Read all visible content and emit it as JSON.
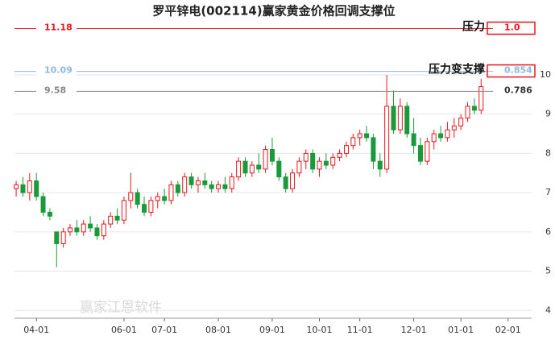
{
  "chart_data": {
    "type": "candlestick",
    "title": "罗平锌电(002114)赢家黄金价格回调支撑位",
    "watermark": "赢家江恩软件",
    "up_color": "#e8161c",
    "down_color": "#1a9a3a",
    "xlim": [
      -0.25,
      76.5
    ],
    "ylim": [
      3.8,
      11.6
    ],
    "yticks": [
      4,
      5,
      6,
      7,
      8,
      9,
      10
    ],
    "xticks": [
      {
        "value": 3,
        "label": "04-01"
      },
      {
        "value": 16,
        "label": "06-01"
      },
      {
        "value": 22,
        "label": "07-01"
      },
      {
        "value": 30,
        "label": "08-01"
      },
      {
        "value": 38,
        "label": "09-01"
      },
      {
        "value": 45,
        "label": "10-01"
      },
      {
        "value": 51,
        "label": "11-01"
      },
      {
        "value": 59,
        "label": "12-01"
      },
      {
        "value": 66,
        "label": "01-01"
      },
      {
        "value": 73,
        "label": "02-01"
      }
    ],
    "grid": true,
    "x": [
      0,
      1,
      2,
      3,
      4,
      5,
      6,
      7,
      8,
      9,
      10,
      11,
      12,
      13,
      14,
      15,
      16,
      17,
      18,
      19,
      20,
      21,
      22,
      23,
      24,
      25,
      26,
      27,
      28,
      29,
      30,
      31,
      32,
      33,
      34,
      35,
      36,
      37,
      38,
      39,
      40,
      41,
      42,
      43,
      44,
      45,
      46,
      47,
      48,
      49,
      50,
      51,
      52,
      53,
      54,
      55,
      56,
      57,
      58,
      59,
      60,
      61,
      62,
      63,
      64,
      65,
      66,
      67,
      68,
      69
    ],
    "open": [
      7.1,
      7.2,
      7.0,
      7.3,
      6.9,
      6.5,
      6.0,
      5.7,
      6.0,
      6.1,
      6.0,
      6.2,
      6.1,
      5.9,
      6.2,
      6.4,
      6.3,
      6.8,
      7.0,
      6.7,
      6.5,
      6.8,
      6.9,
      6.8,
      7.2,
      7.0,
      7.4,
      7.2,
      7.3,
      7.2,
      7.1,
      7.2,
      7.1,
      7.4,
      7.8,
      7.5,
      7.7,
      7.6,
      8.1,
      7.8,
      7.4,
      7.1,
      7.5,
      7.8,
      8.0,
      7.6,
      7.8,
      7.7,
      7.9,
      8.0,
      8.2,
      8.4,
      8.5,
      8.4,
      7.8,
      7.6,
      9.2,
      8.6,
      9.2,
      8.5,
      8.2,
      7.8,
      8.3,
      8.5,
      8.4,
      8.6,
      8.7,
      8.9,
      9.2,
      9.1
    ],
    "high": [
      7.3,
      7.4,
      7.5,
      7.5,
      7.0,
      6.6,
      6.0,
      6.1,
      6.2,
      6.3,
      6.3,
      6.4,
      6.2,
      6.3,
      6.5,
      6.6,
      6.9,
      7.5,
      7.1,
      6.9,
      6.9,
      7.0,
      7.1,
      7.3,
      7.3,
      7.5,
      7.5,
      7.4,
      7.5,
      7.3,
      7.3,
      7.4,
      7.5,
      7.9,
      7.9,
      7.8,
      8.0,
      8.2,
      8.4,
      7.9,
      7.5,
      7.6,
      7.9,
      8.1,
      8.1,
      7.9,
      8.0,
      8.0,
      8.1,
      8.3,
      8.5,
      8.6,
      8.7,
      8.5,
      8.0,
      10.0,
      9.6,
      9.4,
      9.3,
      8.9,
      8.4,
      8.4,
      8.6,
      8.7,
      8.8,
      8.9,
      9.0,
      9.3,
      9.4,
      9.9
    ],
    "low": [
      6.9,
      6.9,
      6.8,
      6.8,
      6.4,
      6.3,
      5.1,
      5.6,
      5.9,
      5.9,
      5.9,
      6.0,
      5.8,
      5.8,
      6.1,
      6.2,
      6.2,
      6.6,
      6.6,
      6.4,
      6.4,
      6.6,
      6.7,
      6.7,
      6.9,
      6.9,
      7.1,
      7.0,
      7.1,
      7.0,
      7.0,
      7.0,
      7.0,
      7.3,
      7.4,
      7.4,
      7.5,
      7.5,
      7.7,
      7.3,
      7.0,
      7.0,
      7.4,
      7.6,
      7.5,
      7.4,
      7.6,
      7.6,
      7.8,
      7.9,
      8.1,
      8.2,
      8.3,
      7.6,
      7.4,
      7.5,
      8.5,
      8.5,
      8.4,
      8.0,
      7.7,
      7.7,
      8.1,
      8.3,
      8.3,
      8.4,
      8.6,
      8.8,
      9.0,
      9.0
    ],
    "close": [
      7.2,
      7.0,
      7.3,
      6.9,
      6.5,
      6.4,
      5.7,
      6.0,
      6.1,
      6.0,
      6.2,
      6.1,
      5.9,
      6.2,
      6.4,
      6.3,
      6.8,
      7.0,
      6.7,
      6.5,
      6.8,
      6.9,
      6.8,
      7.2,
      7.0,
      7.4,
      7.2,
      7.3,
      7.2,
      7.1,
      7.2,
      7.1,
      7.4,
      7.8,
      7.5,
      7.7,
      7.6,
      8.1,
      7.8,
      7.4,
      7.1,
      7.5,
      7.8,
      8.0,
      7.6,
      7.8,
      7.7,
      7.9,
      8.0,
      8.2,
      8.4,
      8.5,
      8.4,
      7.8,
      7.6,
      9.2,
      8.6,
      9.2,
      8.5,
      8.2,
      7.8,
      8.3,
      8.5,
      8.4,
      8.6,
      8.7,
      8.9,
      9.2,
      9.1,
      9.7
    ],
    "levels": [
      {
        "value": 11.18,
        "ratio": "1.0",
        "tag": "压力",
        "color": "#e8161c"
      },
      {
        "value": 10.09,
        "ratio": "0.854",
        "tag": "压力变支撑",
        "color": "#8fb8e0"
      },
      {
        "value": 9.58,
        "ratio": "0.786",
        "color": "#888888"
      }
    ]
  }
}
